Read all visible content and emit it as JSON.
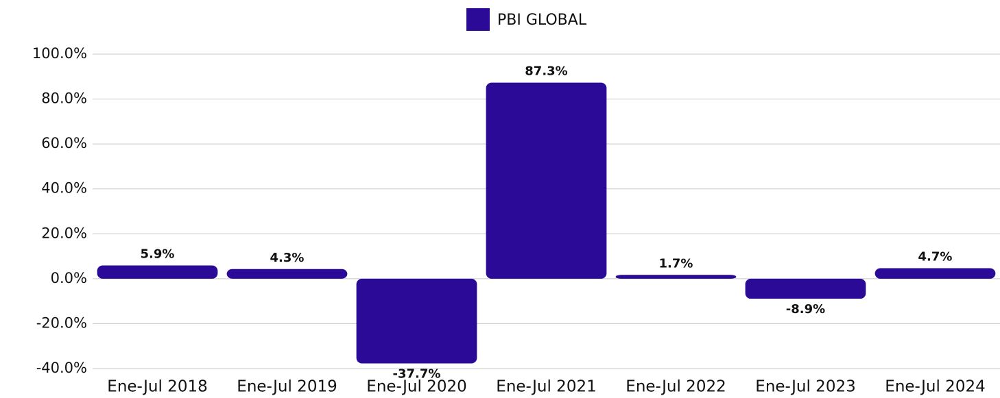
{
  "chart_data": {
    "type": "bar",
    "legend": "PBI GLOBAL",
    "categories": [
      "Ene-Jul 2018",
      "Ene-Jul 2019",
      "Ene-Jul 2020",
      "Ene-Jul 2021",
      "Ene-Jul 2022",
      "Ene-Jul 2023",
      "Ene-Jul 2024"
    ],
    "values": [
      5.9,
      4.3,
      -37.7,
      87.3,
      1.7,
      -8.9,
      4.7
    ],
    "value_labels": [
      "5.9%",
      "4.3%",
      "-37.7%",
      "87.3%",
      "1.7%",
      "-8.9%",
      "4.7%"
    ],
    "color": "#2a0a96",
    "ylim": [
      -40,
      100
    ],
    "yticks": [
      {
        "value": -40,
        "label": "-40.0%"
      },
      {
        "value": -20,
        "label": "-20.0%"
      },
      {
        "value": 0,
        "label": "0.0%"
      },
      {
        "value": 20,
        "label": "20.0%"
      },
      {
        "value": 40,
        "label": "40.0%"
      },
      {
        "value": 60,
        "label": "60.0%"
      },
      {
        "value": 80,
        "label": "80.0%"
      },
      {
        "value": 100,
        "label": "100.0%"
      }
    ],
    "grid": true
  }
}
